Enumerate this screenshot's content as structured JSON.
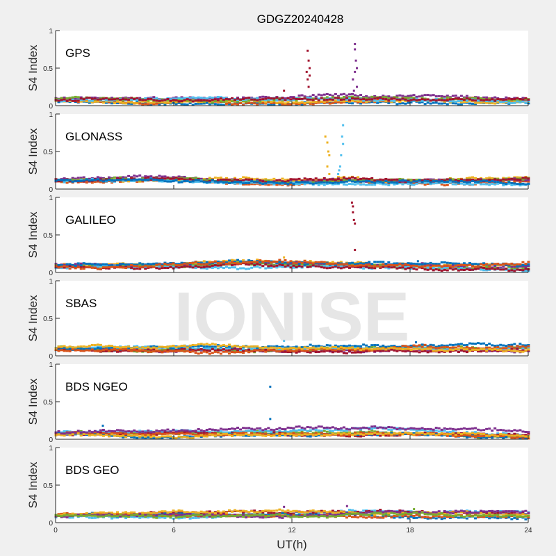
{
  "chart_data": {
    "type": "scatter",
    "title": "GDGZ20240428",
    "xlabel": "UT(h)",
    "ylabel": "S4 Index",
    "xlim": [
      0,
      24
    ],
    "ylim": [
      0,
      1
    ],
    "xticks": [
      "0",
      "6",
      "12",
      "18",
      "24"
    ],
    "yticks": [
      "0",
      "0.5",
      "1"
    ],
    "watermark": "IONISE",
    "colors": [
      "#0072BD",
      "#D95319",
      "#EDB120",
      "#7E2F8E",
      "#77AC30",
      "#4DBEEE",
      "#A2142F"
    ],
    "panels": [
      {
        "name": "GPS",
        "baseline": [
          [
            0,
            0.08
          ],
          [
            6,
            0.07
          ],
          [
            12,
            0.07
          ],
          [
            15,
            0.09
          ],
          [
            18,
            0.08
          ],
          [
            24,
            0.08
          ]
        ],
        "spikes": [
          [
            11.6,
            0.2,
            6
          ],
          [
            12.8,
            0.73,
            6
          ],
          [
            12.85,
            0.6,
            6
          ],
          [
            12.9,
            0.5,
            6
          ],
          [
            12.75,
            0.45,
            6
          ],
          [
            12.9,
            0.4,
            6
          ],
          [
            12.8,
            0.35,
            6
          ],
          [
            12.85,
            0.25,
            6
          ],
          [
            15.2,
            0.82,
            3
          ],
          [
            15.2,
            0.75,
            3
          ],
          [
            15.25,
            0.6,
            3
          ],
          [
            15.3,
            0.5,
            3
          ],
          [
            15.2,
            0.45,
            3
          ],
          [
            15.1,
            0.35,
            3
          ],
          [
            15.3,
            0.25,
            3
          ],
          [
            15.15,
            0.2,
            3
          ]
        ]
      },
      {
        "name": "GLONASS",
        "baseline": [
          [
            0,
            0.1
          ],
          [
            5,
            0.12
          ],
          [
            8,
            0.1
          ],
          [
            12,
            0.07
          ],
          [
            15,
            0.1
          ],
          [
            18,
            0.08
          ],
          [
            24,
            0.09
          ]
        ],
        "spikes": [
          [
            13.7,
            0.7,
            2
          ],
          [
            13.8,
            0.62,
            2
          ],
          [
            13.85,
            0.5,
            2
          ],
          [
            13.9,
            0.45,
            2
          ],
          [
            13.8,
            0.3,
            2
          ],
          [
            13.9,
            0.2,
            2
          ],
          [
            14.6,
            0.85,
            5
          ],
          [
            14.55,
            0.7,
            5
          ],
          [
            14.6,
            0.6,
            5
          ],
          [
            14.5,
            0.45,
            5
          ],
          [
            14.45,
            0.3,
            5
          ],
          [
            14.4,
            0.25,
            5
          ],
          [
            14.35,
            0.2,
            5
          ]
        ]
      },
      {
        "name": "GALILEO",
        "baseline": [
          [
            0,
            0.08
          ],
          [
            6,
            0.08
          ],
          [
            10,
            0.1
          ],
          [
            14,
            0.08
          ],
          [
            18,
            0.07
          ],
          [
            24,
            0.07
          ]
        ],
        "spikes": [
          [
            15.05,
            0.93,
            6
          ],
          [
            15.1,
            0.88,
            6
          ],
          [
            15.1,
            0.8,
            6
          ],
          [
            15.15,
            0.7,
            6
          ],
          [
            15.2,
            0.65,
            6
          ],
          [
            15.2,
            0.3,
            6
          ],
          [
            11.6,
            0.2,
            2
          ],
          [
            18.4,
            0.15,
            0
          ]
        ]
      },
      {
        "name": "SBAS",
        "baseline": [
          [
            0,
            0.1
          ],
          [
            6,
            0.09
          ],
          [
            12,
            0.09
          ],
          [
            18,
            0.1
          ],
          [
            24,
            0.1
          ]
        ],
        "spikes": [
          [
            11.6,
            0.2,
            5
          ],
          [
            18.3,
            0.18,
            0
          ]
        ]
      },
      {
        "name": "BDS NGEO",
        "baseline": [
          [
            0,
            0.08
          ],
          [
            6,
            0.07
          ],
          [
            12,
            0.1
          ],
          [
            18,
            0.1
          ],
          [
            24,
            0.06
          ]
        ],
        "spikes": [
          [
            10.9,
            0.7,
            0
          ],
          [
            10.9,
            0.27,
            0
          ],
          [
            2.4,
            0.18,
            0
          ]
        ]
      },
      {
        "name": "BDS GEO",
        "baseline": [
          [
            0,
            0.1
          ],
          [
            6,
            0.1
          ],
          [
            12,
            0.1
          ],
          [
            18,
            0.1
          ],
          [
            24,
            0.1
          ]
        ],
        "spikes": [
          [
            11.6,
            0.21,
            3
          ],
          [
            14.8,
            0.22,
            3
          ],
          [
            18.2,
            0.18,
            4
          ]
        ]
      }
    ]
  }
}
